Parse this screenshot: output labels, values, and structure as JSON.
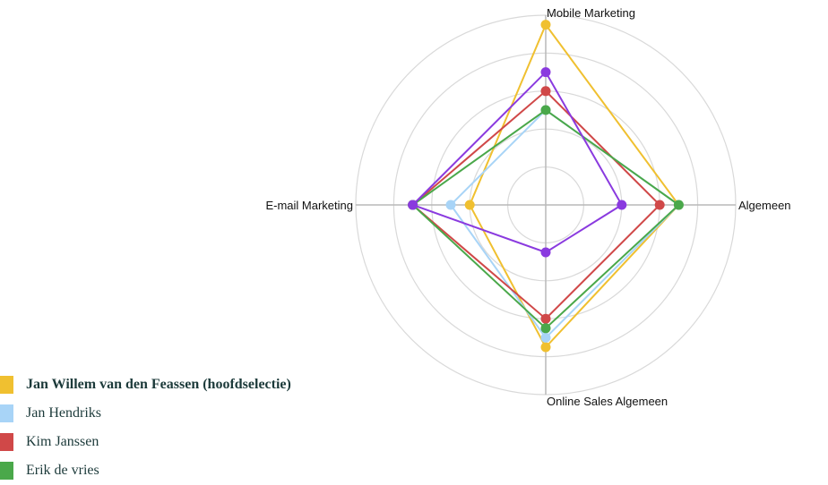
{
  "chart_data": {
    "type": "radar",
    "axes": [
      "Mobile Marketing",
      "Algemeen",
      "Online Sales Algemeen",
      "E-mail Marketing"
    ],
    "rlim": [
      0,
      10
    ],
    "rings": 5,
    "grid": true,
    "legend_position": "bottom-left",
    "series": [
      {
        "name": "Jan Willem van den Feassen (hoofdselectie)",
        "color": "#f0c030",
        "values": [
          9.5,
          7,
          7.5,
          4
        ],
        "bold": true
      },
      {
        "name": "Jan Hendriks",
        "color": "#a8d4f7",
        "values": [
          5,
          7,
          7,
          5
        ],
        "bold": false
      },
      {
        "name": "Kim Janssen",
        "color": "#d04848",
        "values": [
          6,
          6,
          6,
          7
        ],
        "bold": false
      },
      {
        "name": "Erik de vries",
        "color": "#4aa84a",
        "values": [
          5,
          7,
          6.5,
          7
        ],
        "bold": false
      },
      {
        "name": "",
        "color": "#8a3adf",
        "values": [
          7,
          4,
          2.5,
          7
        ],
        "bold": false
      }
    ]
  }
}
